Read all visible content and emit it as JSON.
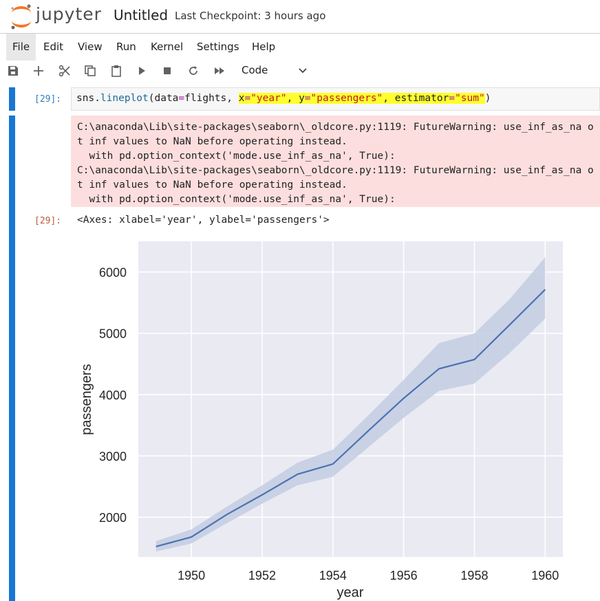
{
  "app": {
    "logo_text": "jupyter",
    "notebook_title": "Untitled",
    "checkpoint": "Last Checkpoint: 3 hours ago"
  },
  "menu": [
    "File",
    "Edit",
    "View",
    "Run",
    "Kernel",
    "Settings",
    "Help"
  ],
  "toolbar": {
    "buttons": [
      "save-icon",
      "add-icon",
      "cut-icon",
      "copy-icon",
      "paste-icon",
      "run-icon",
      "stop-icon",
      "restart-icon",
      "fast-forward-icon"
    ],
    "cell_type": "Code"
  },
  "cell": {
    "input_prompt": "[29]:",
    "code": {
      "p1": "sns.",
      "p2": "lineplot",
      "p3": "(data",
      "p4": "=",
      "p5": "flights, ",
      "p6": "x",
      "p7": "=",
      "p8": "\"year\"",
      "p9": ", ",
      "p10": "y",
      "p11": "=",
      "p12": "\"passengers\"",
      "p13": ", estimator",
      "p14": "=",
      "p15": "\"sum\"",
      "p16": ")"
    },
    "stderr": [
      "C:\\anaconda\\Lib\\site-packages\\seaborn\\_oldcore.py:1119: FutureWarning: use_inf_as_na o",
      "t inf values to NaN before operating instead.",
      "  with pd.option_context('mode.use_inf_as_na', True):",
      "C:\\anaconda\\Lib\\site-packages\\seaborn\\_oldcore.py:1119: FutureWarning: use_inf_as_na o",
      "t inf values to NaN before operating instead.",
      "  with pd.option_context('mode.use_inf_as_na', True):"
    ],
    "output_prompt": "[29]:",
    "result": "<Axes: xlabel='year', ylabel='passengers'>"
  },
  "chart_data": {
    "type": "line",
    "xlabel": "year",
    "ylabel": "passengers",
    "x": [
      1949,
      1950,
      1951,
      1952,
      1953,
      1954,
      1955,
      1956,
      1957,
      1958,
      1959,
      1960
    ],
    "series": [
      {
        "values": [
          1520,
          1676,
          2042,
          2364,
          2700,
          2867,
          3408,
          3939,
          4421,
          4572,
          5140,
          5714
        ],
        "ci_low": [
          1440,
          1570,
          1900,
          2220,
          2520,
          2660,
          3140,
          3620,
          4060,
          4180,
          4680,
          5240
        ],
        "ci_high": [
          1610,
          1800,
          2170,
          2520,
          2890,
          3100,
          3660,
          4240,
          4840,
          5000,
          5560,
          6240
        ]
      }
    ],
    "xlim": [
      1948.5,
      1960.5
    ],
    "ylim": [
      1350,
      6500
    ],
    "xticks": [
      1950,
      1952,
      1954,
      1956,
      1958,
      1960
    ],
    "yticks": [
      2000,
      3000,
      4000,
      5000,
      6000
    ],
    "grid": true,
    "colors": {
      "line": "#4c72b0",
      "band": "#c3cde3",
      "axes_bg": "#eaeaf2"
    }
  }
}
